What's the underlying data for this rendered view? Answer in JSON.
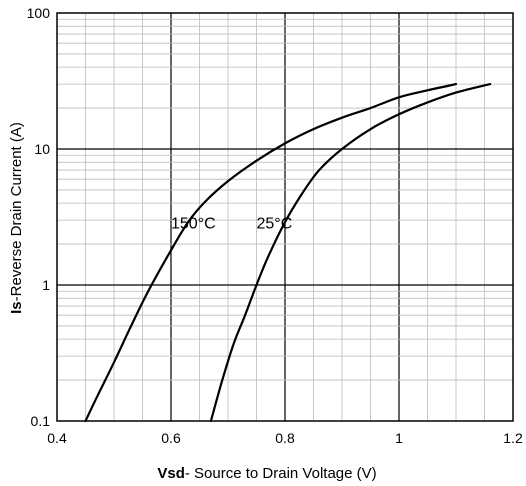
{
  "chart_data": {
    "type": "line",
    "title": "",
    "xlabel_bold": "Vsd",
    "xlabel_rest": "- Source to Drain Voltage (V)",
    "ylabel_bold": "Is",
    "ylabel_rest": "-Reverse Drain Current (A)",
    "xlim": [
      0.4,
      1.2
    ],
    "ylim": [
      0.1,
      100
    ],
    "y_scale": "log",
    "grid": true,
    "x_ticks": [
      "0.4",
      "0.6",
      "0.8",
      "1",
      "1.2"
    ],
    "y_ticks": [
      "0.1",
      "1",
      "10",
      "100"
    ],
    "series": [
      {
        "name": "150°C",
        "label_at": [
          0.6,
          2.6
        ],
        "x": [
          0.45,
          0.47,
          0.5,
          0.53,
          0.56,
          0.6,
          0.63,
          0.66,
          0.7,
          0.75,
          0.8,
          0.85,
          0.9,
          0.95,
          1.0,
          1.05,
          1.1
        ],
        "y": [
          0.1,
          0.15,
          0.27,
          0.5,
          0.9,
          1.8,
          2.9,
          4.1,
          5.8,
          8.2,
          11,
          14,
          17,
          20,
          24,
          27,
          30
        ]
      },
      {
        "name": "25°C",
        "label_at": [
          0.75,
          2.6
        ],
        "x": [
          0.67,
          0.69,
          0.71,
          0.73,
          0.75,
          0.77,
          0.8,
          0.83,
          0.86,
          0.9,
          0.95,
          1.0,
          1.05,
          1.1,
          1.16
        ],
        "y": [
          0.1,
          0.2,
          0.37,
          0.6,
          1.0,
          1.6,
          2.9,
          4.7,
          7.0,
          10,
          14,
          18,
          22,
          26,
          30
        ]
      }
    ]
  }
}
